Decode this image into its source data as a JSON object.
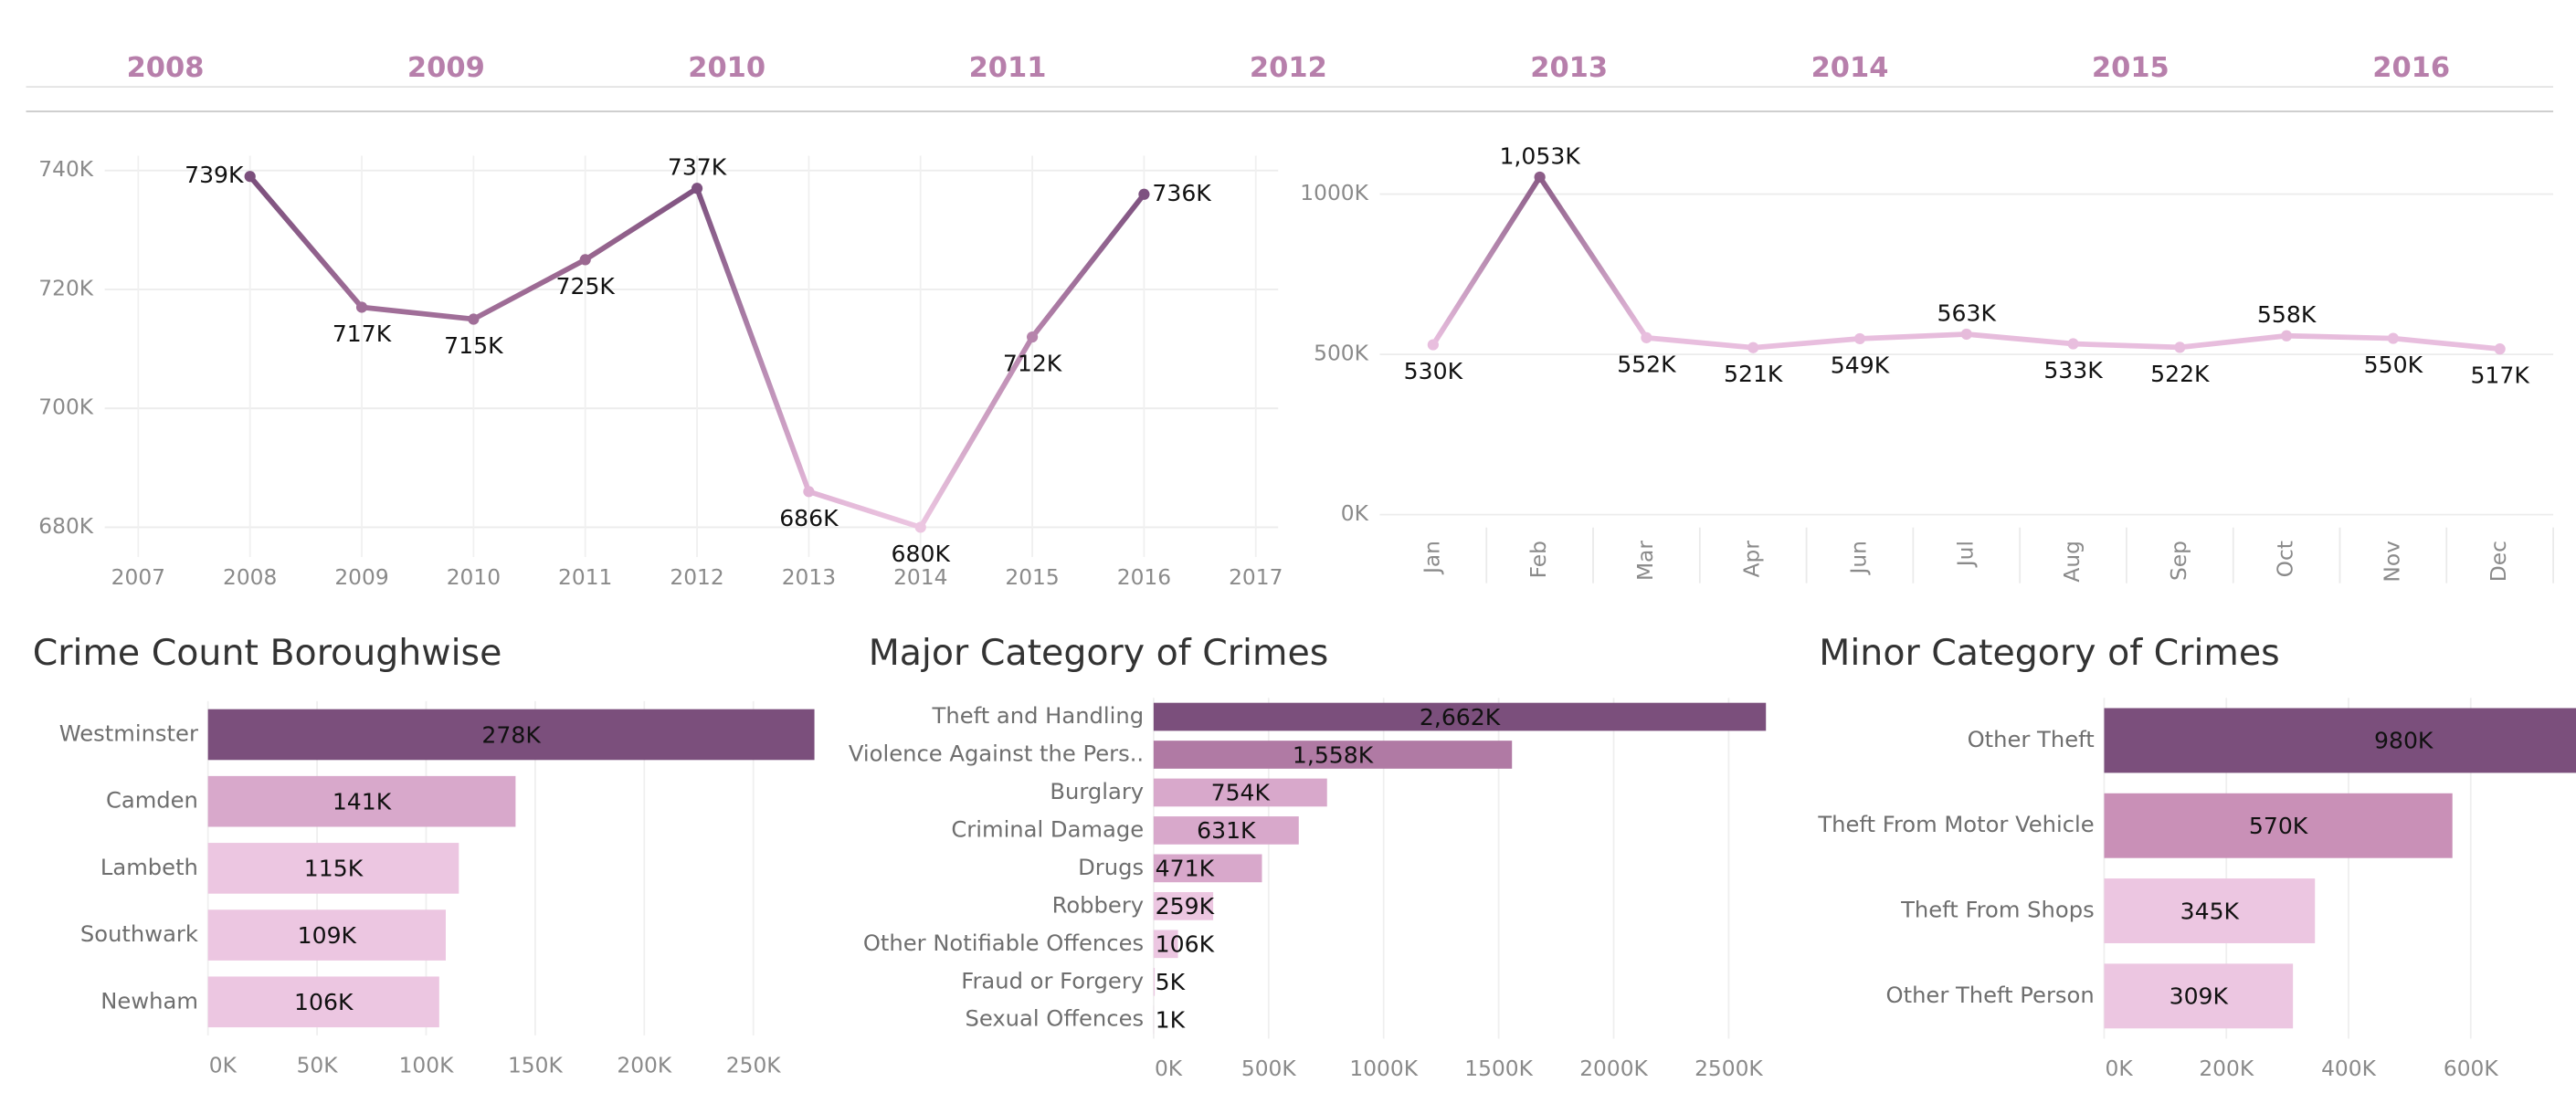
{
  "year_filter": [
    2008,
    2009,
    2010,
    2011,
    2012,
    2013,
    2014,
    2015,
    2016
  ],
  "chart_data": [
    {
      "type": "line",
      "x": [
        2008,
        2009,
        2010,
        2011,
        2012,
        2013,
        2014,
        2015,
        2016
      ],
      "values": [
        739000,
        717000,
        715000,
        725000,
        737000,
        686000,
        680000,
        712000,
        736000
      ],
      "value_labels": [
        "739K",
        "717K",
        "715K",
        "725K",
        "737K",
        "686K",
        "680K",
        "712K",
        "736K"
      ],
      "point_colors": [
        "#7b4f7c",
        "#a06e98",
        "#a06e98",
        "#9a6790",
        "#7e5280",
        "#e1b4d6",
        "#ecc6e1",
        "#b684ac",
        "#7e5280"
      ],
      "xlim": [
        2006.7,
        2017.2
      ],
      "xticks": [
        2007,
        2008,
        2009,
        2010,
        2011,
        2012,
        2013,
        2014,
        2015,
        2016,
        2017
      ],
      "ylim": [
        675000,
        742500
      ],
      "yticks": [
        {
          "value": 680000,
          "label": "680K"
        },
        {
          "value": 700000,
          "label": "700K"
        },
        {
          "value": 720000,
          "label": "720K"
        },
        {
          "value": 740000,
          "label": "740K"
        }
      ],
      "grid": true
    },
    {
      "type": "line",
      "categories": [
        "Jan",
        "Feb",
        "Mar",
        "Apr",
        "Jun",
        "Jul",
        "Aug",
        "Sep",
        "Oct",
        "Nov",
        "Dec"
      ],
      "values": [
        530000,
        1053000,
        552000,
        521000,
        549000,
        563000,
        533000,
        522000,
        558000,
        550000,
        517000
      ],
      "value_labels": [
        "530K",
        "1,053K",
        "552K",
        "521K",
        "549K",
        "563K",
        "533K",
        "522K",
        "558K",
        "550K",
        "517K"
      ],
      "point_colors": [
        "#e8bede",
        "#8c5d88",
        "#e8bede",
        "#e8bede",
        "#e8bede",
        "#e6bbdb",
        "#e8bede",
        "#e8bede",
        "#e6bbdb",
        "#e8bede",
        "#e8bede"
      ],
      "ylim": [
        -40000,
        1120000
      ],
      "yticks": [
        {
          "value": 0,
          "label": "0K"
        },
        {
          "value": 500000,
          "label": "500K"
        },
        {
          "value": 1000000,
          "label": "1000K"
        }
      ],
      "grid": true
    },
    {
      "type": "barh",
      "title": "Crime Count Boroughwise",
      "categories": [
        "Westminster",
        "Camden",
        "Lambeth",
        "Southwark",
        "Newham"
      ],
      "values": [
        278000,
        141000,
        115000,
        109000,
        106000
      ],
      "value_labels": [
        "278K",
        "141K",
        "115K",
        "109K",
        "106K"
      ],
      "colors": [
        "#7b4f7c",
        "#d8a8cb",
        "#ecc6e1",
        "#ecc6e1",
        "#ecc6e1"
      ],
      "xlim": [
        0,
        293000
      ],
      "xticks": [
        {
          "value": 0,
          "label": "0K"
        },
        {
          "value": 50000,
          "label": "50K"
        },
        {
          "value": 100000,
          "label": "100K"
        },
        {
          "value": 150000,
          "label": "150K"
        },
        {
          "value": 200000,
          "label": "200K"
        },
        {
          "value": 250000,
          "label": "250K"
        }
      ],
      "grid": true
    },
    {
      "type": "barh",
      "title": "Major Category of Crimes",
      "categories": [
        "Theft and Handling",
        "Violence Against the Pers..",
        "Burglary",
        "Criminal Damage",
        "Drugs",
        "Robbery",
        "Other Notifiable Offences",
        "Fraud or Forgery",
        "Sexual Offences"
      ],
      "values": [
        2662000,
        1558000,
        754000,
        631000,
        471000,
        259000,
        106000,
        5000,
        1000
      ],
      "value_labels": [
        "2,662K",
        "1,558K",
        "754K",
        "631K",
        "471K",
        "259K",
        "106K",
        "5K",
        "1K"
      ],
      "colors": [
        "#7b4f7c",
        "#b07aa4",
        "#d8a8cb",
        "#d8a8cb",
        "#d8a8cb",
        "#ecc6e1",
        "#ecc6e1",
        "#ecc6e1",
        "#ecc6e1"
      ],
      "xlim": [
        0,
        2800000
      ],
      "xticks": [
        {
          "value": 0,
          "label": "0K"
        },
        {
          "value": 500000,
          "label": "500K"
        },
        {
          "value": 1000000,
          "label": "1000K"
        },
        {
          "value": 1500000,
          "label": "1500K"
        },
        {
          "value": 2000000,
          "label": "2000K"
        },
        {
          "value": 2500000,
          "label": "2500K"
        }
      ],
      "grid": true
    },
    {
      "type": "barh",
      "title": "Minor Category of Crimes",
      "categories": [
        "Other Theft",
        "Theft From Motor Vehicle",
        "Theft From Shops",
        "Other Theft Person"
      ],
      "values": [
        980000,
        570000,
        345000,
        309000
      ],
      "value_labels": [
        "980K",
        "570K",
        "345K",
        "309K"
      ],
      "colors": [
        "#7b4f7c",
        "#c990b7",
        "#ecc6e1",
        "#ecc6e1"
      ],
      "xlim": [
        0,
        735000
      ],
      "xticks": [
        {
          "value": 0,
          "label": "0K"
        },
        {
          "value": 200000,
          "label": "200K"
        },
        {
          "value": 400000,
          "label": "400K"
        },
        {
          "value": 600000,
          "label": "600K"
        }
      ],
      "grid": true
    }
  ]
}
